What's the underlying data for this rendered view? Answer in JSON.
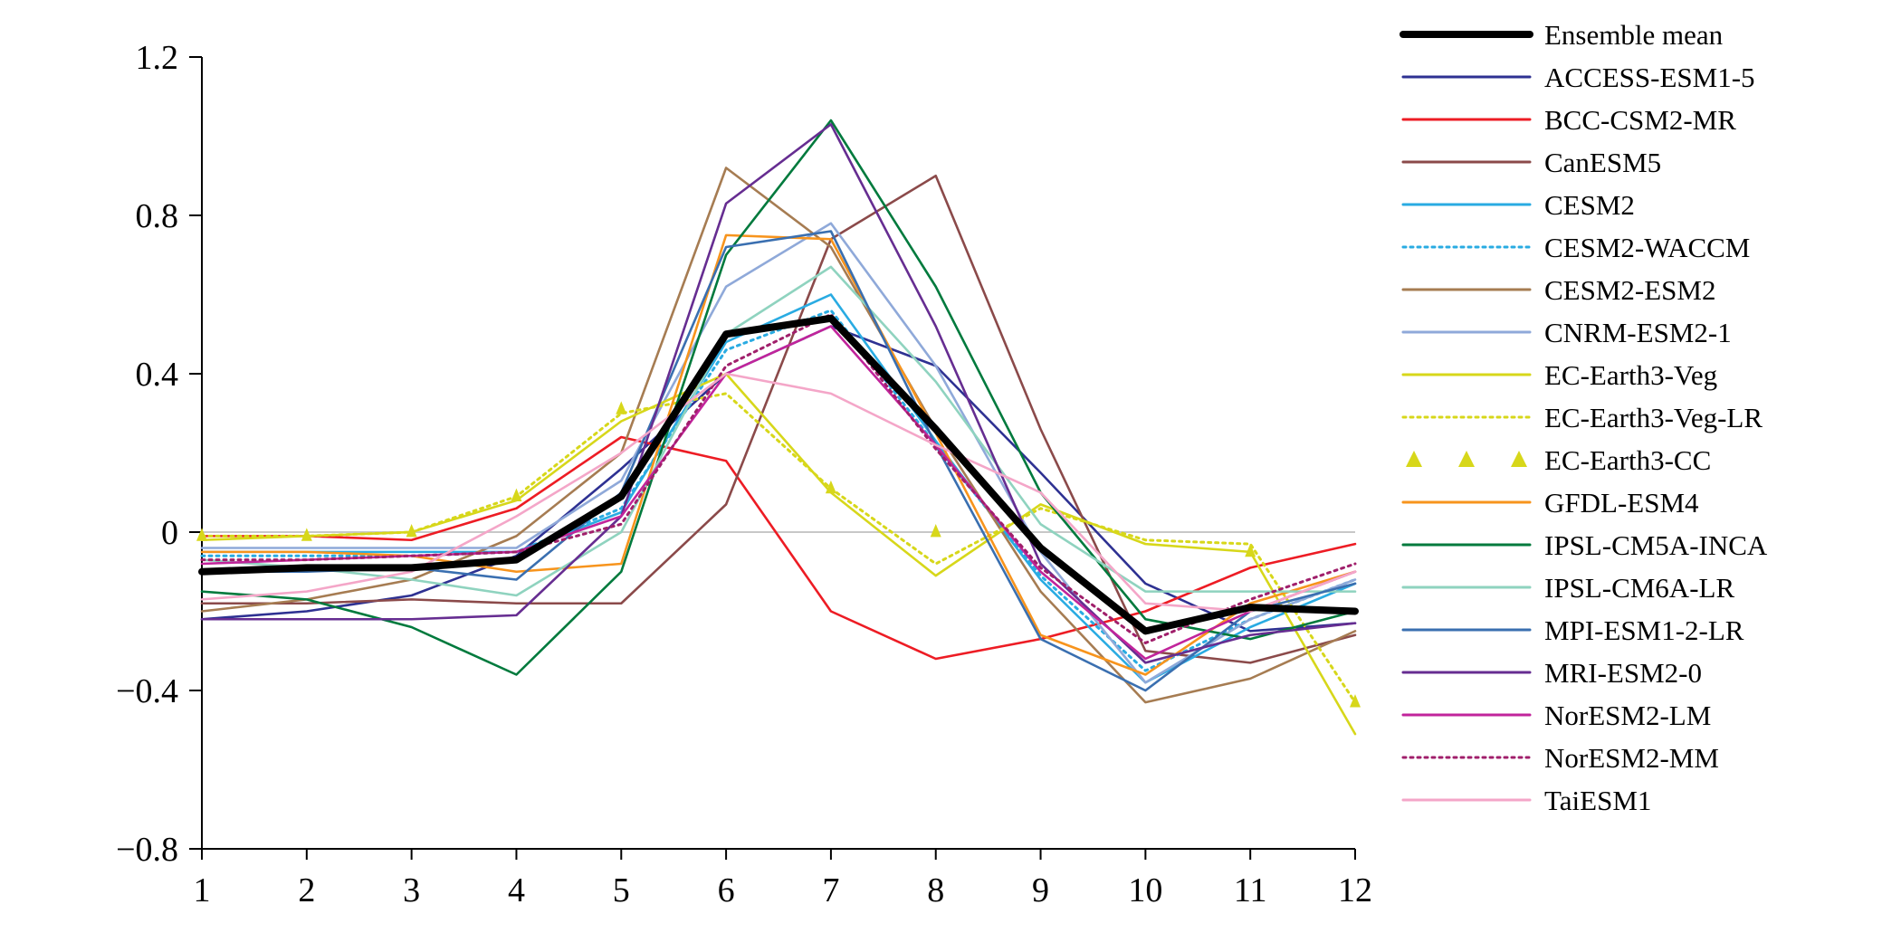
{
  "chart_data": {
    "type": "line",
    "title": "",
    "xlabel": "",
    "ylabel": "",
    "x": [
      1,
      2,
      3,
      4,
      5,
      6,
      7,
      8,
      9,
      10,
      11,
      12
    ],
    "xlim": [
      1,
      12
    ],
    "ylim": [
      -0.8,
      1.2
    ],
    "yticks": [
      -0.8,
      -0.4,
      0,
      0.4,
      0.8,
      1.2
    ],
    "ytick_labels": [
      "−0.8",
      "−0.4",
      "0",
      "0.4",
      "0.8",
      "1.2"
    ],
    "xtick_labels": [
      "1",
      "2",
      "3",
      "4",
      "5",
      "6",
      "7",
      "8",
      "9",
      "10",
      "11",
      "12"
    ],
    "zero_line": true,
    "grid": false,
    "legend_position": "right",
    "series": [
      {
        "name": "Ensemble mean",
        "color": "#000000",
        "style": "solid",
        "width": "thick",
        "values": [
          -0.1,
          -0.09,
          -0.09,
          -0.07,
          0.09,
          0.5,
          0.54,
          0.26,
          -0.04,
          -0.25,
          -0.19,
          -0.2
        ]
      },
      {
        "name": "ACCESS-ESM1-5",
        "color": "#2e3192",
        "style": "solid",
        "values": [
          -0.22,
          -0.2,
          -0.16,
          -0.06,
          0.16,
          0.4,
          0.52,
          0.42,
          0.15,
          -0.13,
          -0.25,
          -0.23
        ]
      },
      {
        "name": "BCC-CSM2-MR",
        "color": "#ed1c24",
        "style": "solid",
        "values": [
          -0.01,
          -0.01,
          -0.02,
          0.06,
          0.24,
          0.18,
          -0.2,
          -0.32,
          -0.27,
          -0.2,
          -0.09,
          -0.03
        ]
      },
      {
        "name": "CanESM5",
        "color": "#8b4a4a",
        "style": "solid",
        "values": [
          -0.18,
          -0.18,
          -0.17,
          -0.18,
          -0.18,
          0.07,
          0.74,
          0.9,
          0.26,
          -0.3,
          -0.33,
          -0.26
        ]
      },
      {
        "name": "CESM2",
        "color": "#29abe2",
        "style": "solid",
        "values": [
          -0.05,
          -0.05,
          -0.05,
          -0.05,
          0.05,
          0.48,
          0.6,
          0.23,
          -0.12,
          -0.38,
          -0.24,
          -0.13
        ]
      },
      {
        "name": "CESM2-WACCM",
        "color": "#29abe2",
        "style": "dotted",
        "values": [
          -0.06,
          -0.06,
          -0.06,
          -0.05,
          0.06,
          0.46,
          0.56,
          0.22,
          -0.11,
          -0.35,
          -0.22,
          -0.12
        ]
      },
      {
        "name": "CESM2-ESM2",
        "color": "#a67c52",
        "style": "solid",
        "values": [
          -0.2,
          -0.17,
          -0.12,
          -0.01,
          0.2,
          0.92,
          0.72,
          0.26,
          -0.15,
          -0.43,
          -0.37,
          -0.25
        ]
      },
      {
        "name": "CNRM-ESM2-1",
        "color": "#8fa9d9",
        "style": "solid",
        "values": [
          -0.04,
          -0.04,
          -0.04,
          -0.04,
          0.13,
          0.62,
          0.78,
          0.42,
          -0.05,
          -0.38,
          -0.22,
          -0.12
        ]
      },
      {
        "name": "EC-Earth3-Veg",
        "color": "#d7d71a",
        "style": "solid",
        "values": [
          -0.02,
          -0.01,
          0.0,
          0.08,
          0.28,
          0.4,
          0.1,
          -0.11,
          0.07,
          -0.03,
          -0.05,
          -0.51
        ]
      },
      {
        "name": "EC-Earth3-Veg-LR",
        "color": "#d7d71a",
        "style": "dotted",
        "values": [
          -0.01,
          -0.01,
          0.0,
          0.09,
          0.3,
          0.35,
          0.11,
          -0.08,
          0.06,
          -0.02,
          -0.03,
          -0.43
        ]
      },
      {
        "name": "EC-Earth3-CC",
        "color": "#d7d71a",
        "style": "markers",
        "values": [
          -0.01,
          -0.01,
          0.0,
          0.09,
          0.31,
          null,
          0.11,
          0.0,
          null,
          null,
          -0.05,
          -0.43
        ]
      },
      {
        "name": "GFDL-ESM4",
        "color": "#f7941d",
        "style": "solid",
        "values": [
          -0.05,
          -0.05,
          -0.06,
          -0.1,
          -0.08,
          0.75,
          0.74,
          0.25,
          -0.26,
          -0.36,
          -0.18,
          -0.1
        ]
      },
      {
        "name": "IPSL-CM5A-INCA",
        "color": "#007a3d",
        "style": "solid",
        "values": [
          -0.15,
          -0.17,
          -0.24,
          -0.36,
          -0.1,
          0.7,
          1.04,
          0.62,
          0.1,
          -0.22,
          -0.27,
          -0.2
        ]
      },
      {
        "name": "IPSL-CM6A-LR",
        "color": "#8fd3bf",
        "style": "solid",
        "values": [
          -0.07,
          -0.09,
          -0.12,
          -0.16,
          0.0,
          0.5,
          0.67,
          0.38,
          0.02,
          -0.15,
          -0.15,
          -0.15
        ]
      },
      {
        "name": "MPI-ESM1-2-LR",
        "color": "#3a6fb0",
        "style": "solid",
        "values": [
          -0.1,
          -0.1,
          -0.09,
          -0.12,
          0.1,
          0.72,
          0.76,
          0.22,
          -0.27,
          -0.4,
          -0.2,
          -0.13
        ]
      },
      {
        "name": "MRI-ESM2-0",
        "color": "#662d91",
        "style": "solid",
        "values": [
          -0.22,
          -0.22,
          -0.22,
          -0.21,
          0.04,
          0.83,
          1.03,
          0.52,
          -0.08,
          -0.33,
          -0.26,
          -0.23
        ]
      },
      {
        "name": "NorESM2-LM",
        "color": "#c1249b",
        "style": "solid",
        "values": [
          -0.08,
          -0.07,
          -0.06,
          -0.05,
          0.04,
          0.4,
          0.52,
          0.22,
          -0.1,
          -0.32,
          -0.2,
          -0.1
        ]
      },
      {
        "name": "NorESM2-MM",
        "color": "#a01f6b",
        "style": "dotted",
        "values": [
          -0.07,
          -0.07,
          -0.06,
          -0.05,
          0.02,
          0.42,
          0.55,
          0.21,
          -0.09,
          -0.28,
          -0.17,
          -0.08
        ]
      },
      {
        "name": "TaiESM1",
        "color": "#f4a6c8",
        "style": "solid",
        "values": [
          -0.17,
          -0.15,
          -0.1,
          0.04,
          0.2,
          0.4,
          0.35,
          0.22,
          0.1,
          -0.18,
          -0.2,
          -0.1
        ]
      }
    ]
  }
}
